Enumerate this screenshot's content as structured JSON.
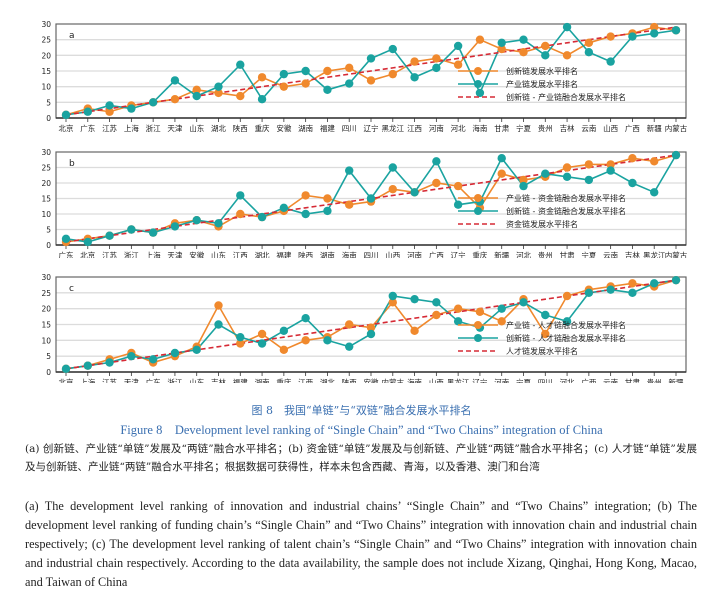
{
  "chart_data": [
    {
      "type": "line",
      "panel_label": "a",
      "title": "",
      "xlabel": "",
      "ylabel": "",
      "ylim": [
        0,
        30
      ],
      "yticks": [
        0,
        5,
        10,
        15,
        20,
        25,
        30
      ],
      "grid": true,
      "legend_position": "bottom-right",
      "categories": [
        "北京",
        "广东",
        "江苏",
        "上海",
        "浙江",
        "天津",
        "山东",
        "湖北",
        "陕西",
        "重庆",
        "安徽",
        "湖南",
        "福建",
        "四川",
        "辽宁",
        "黑龙江",
        "江西",
        "河南",
        "河北",
        "海南",
        "甘肃",
        "宁夏",
        "贵州",
        "吉林",
        "云南",
        "山西",
        "广西",
        "新疆",
        "内蒙古"
      ],
      "series": [
        {
          "name": "创新链发展水平排名",
          "style": "line-marker",
          "color": "#f0892d",
          "values": [
            1,
            3,
            2,
            4,
            5,
            6,
            9,
            8,
            7,
            13,
            10,
            11,
            15,
            16,
            12,
            14,
            18,
            19,
            17,
            25,
            22,
            21,
            23,
            20,
            24,
            26,
            27,
            29,
            28
          ]
        },
        {
          "name": "产业链发展水平排名",
          "style": "line-marker",
          "color": "#1aa3a0",
          "values": [
            1,
            2,
            4,
            3,
            5,
            12,
            7,
            10,
            17,
            6,
            14,
            15,
            9,
            11,
            19,
            22,
            13,
            16,
            23,
            8,
            24,
            25,
            20,
            29,
            21,
            18,
            26,
            27,
            28
          ]
        },
        {
          "name": "创新链 - 产业链融合发展水平排名",
          "style": "dashed",
          "color": "#d62a35",
          "values": [
            1,
            2,
            3,
            4,
            5,
            6,
            7,
            8,
            9,
            10,
            11,
            12,
            13,
            14,
            15,
            16,
            17,
            18,
            19,
            20,
            21,
            22,
            23,
            24,
            25,
            26,
            27,
            28,
            29
          ]
        }
      ]
    },
    {
      "type": "line",
      "panel_label": "b",
      "title": "",
      "xlabel": "",
      "ylabel": "",
      "ylim": [
        0,
        30
      ],
      "yticks": [
        0,
        5,
        10,
        15,
        20,
        25,
        30
      ],
      "grid": true,
      "legend_position": "bottom-right",
      "categories": [
        "广东",
        "北京",
        "江苏",
        "浙江",
        "上海",
        "天津",
        "安徽",
        "山东",
        "江西",
        "湖北",
        "福建",
        "陕西",
        "湖南",
        "海南",
        "四川",
        "山西",
        "河南",
        "广西",
        "辽宁",
        "重庆",
        "新疆",
        "河北",
        "贵州",
        "甘肃",
        "宁夏",
        "云南",
        "吉林",
        "黑龙江",
        "内蒙古"
      ],
      "series": [
        {
          "name": "产业链 - 资金链融合发展水平排名",
          "style": "line-marker",
          "color": "#f0892d",
          "values": [
            1,
            2,
            3,
            5,
            4,
            7,
            8,
            6,
            10,
            9,
            11,
            16,
            15,
            13,
            14,
            18,
            17,
            20,
            19,
            12,
            23,
            21,
            22,
            25,
            26,
            26,
            28,
            27,
            29
          ]
        },
        {
          "name": "创新链 - 资金链融合发展水平排名",
          "style": "line-marker",
          "color": "#1aa3a0",
          "values": [
            2,
            1,
            3,
            5,
            4,
            6,
            8,
            7,
            16,
            9,
            12,
            10,
            11,
            24,
            15,
            25,
            17,
            27,
            13,
            14,
            28,
            19,
            23,
            22,
            21,
            24,
            20,
            17,
            29
          ]
        },
        {
          "name": "资金链发展水平排名",
          "style": "dashed",
          "color": "#d62a35",
          "values": [
            1,
            2,
            3,
            4,
            5,
            6,
            7,
            8,
            9,
            10,
            11,
            12,
            13,
            14,
            15,
            16,
            17,
            18,
            19,
            20,
            21,
            22,
            23,
            24,
            25,
            26,
            27,
            28,
            29
          ]
        }
      ]
    },
    {
      "type": "line",
      "panel_label": "c",
      "title": "",
      "xlabel": "",
      "ylabel": "",
      "ylim": [
        0,
        30
      ],
      "yticks": [
        0,
        5,
        10,
        15,
        20,
        25,
        30
      ],
      "grid": true,
      "legend_position": "bottom-right",
      "categories": [
        "北京",
        "上海",
        "江苏",
        "天津",
        "广东",
        "浙江",
        "山东",
        "吉林",
        "福建",
        "湖南",
        "重庆",
        "江西",
        "湖北",
        "陕西",
        "安徽",
        "内蒙古",
        "海南",
        "山西",
        "黑龙江",
        "辽宁",
        "河南",
        "宁夏",
        "四川",
        "河北",
        "广西",
        "云南",
        "甘肃",
        "贵州",
        "新疆"
      ],
      "series": [
        {
          "name": "产业链 - 人才链融合发展水平排名",
          "style": "line-marker",
          "color": "#f0892d",
          "values": [
            1,
            2,
            4,
            6,
            3,
            5,
            8,
            21,
            9,
            12,
            7,
            10,
            11,
            15,
            14,
            22,
            13,
            18,
            20,
            19,
            16,
            23,
            12,
            24,
            26,
            27,
            28,
            27,
            29
          ]
        },
        {
          "name": "创新链 - 人才链融合发展水平排名",
          "style": "line-marker",
          "color": "#1aa3a0",
          "values": [
            1,
            2,
            3,
            5,
            4,
            6,
            7,
            15,
            11,
            9,
            13,
            17,
            10,
            8,
            12,
            24,
            23,
            22,
            16,
            14,
            20,
            22,
            18,
            16,
            25,
            26,
            25,
            28,
            29
          ]
        },
        {
          "name": "人才链发展水平排名",
          "style": "dashed",
          "color": "#d62a35",
          "values": [
            1,
            2,
            3,
            4,
            5,
            6,
            7,
            8,
            9,
            10,
            11,
            12,
            13,
            14,
            15,
            16,
            17,
            18,
            19,
            20,
            21,
            22,
            23,
            24,
            25,
            26,
            27,
            28,
            29
          ]
        }
      ]
    }
  ],
  "caption": {
    "cn_title": "图 8　我国“单链”与“双链”融合发展水平排名",
    "en_title": "Figure 8　Development level ranking of “Single Chain” and “Two Chains” integration of China",
    "cn_note": "(a) 创新链、产业链“单链”发展及“两链”融合水平排名；(b) 资金链“单链”发展及与创新链、产业链“两链”融合水平排名；(c) 人才链“单链”发展及与创新链、产业链“两链”融合水平排名；根据数据可获得性，样本未包含西藏、青海，以及香港、澳门和台湾",
    "en_note": "(a) The development level ranking of innovation and industrial chains’ “Single Chain” and “Two Chains” integration; (b) The development level ranking of funding chain’s “Single Chain” and “Two Chains” integration with innovation chain and industrial chain respectively; (c) The development level ranking of talent chain’s “Single Chain” and “Two Chains” integration with innovation chain and industrial chain respectively. According to the data availability, the sample does not include Xizang, Qinghai, Hong Kong, Macao, and Taiwan of China"
  }
}
